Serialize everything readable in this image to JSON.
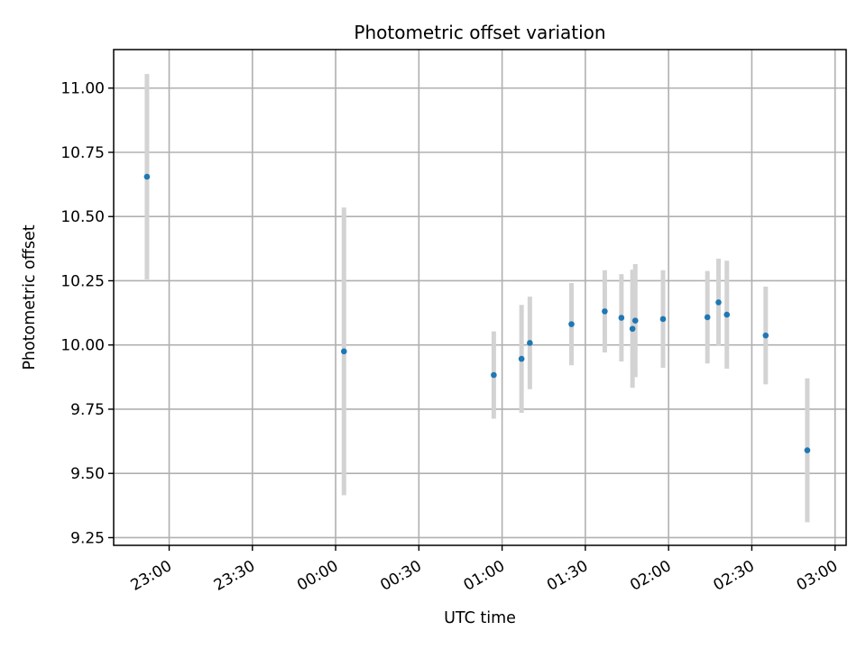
{
  "chart_data": {
    "type": "scatter",
    "title": "Photometric offset variation",
    "xlabel": "UTC time",
    "ylabel": "Photometric offset",
    "grid": true,
    "colors": {
      "points": "#1f77b4",
      "errorbars": "#d3d3d3",
      "grid": "#b0b0b0"
    },
    "xlim": [
      "22:40",
      "03:04"
    ],
    "ylim": [
      9.22,
      11.15
    ],
    "x_ticks": [
      "23:00",
      "23:30",
      "00:00",
      "00:30",
      "01:00",
      "01:30",
      "02:00",
      "02:30",
      "03:00"
    ],
    "y_ticks": [
      "9.25",
      "9.50",
      "9.75",
      "10.00",
      "10.25",
      "10.50",
      "10.75",
      "11.00"
    ],
    "points": [
      {
        "x": "22:52",
        "y": 10.655,
        "ylow": 10.255,
        "yhigh": 11.055
      },
      {
        "x": "00:03",
        "y": 9.975,
        "ylow": 9.415,
        "yhigh": 10.535
      },
      {
        "x": "00:57",
        "y": 9.883,
        "ylow": 9.713,
        "yhigh": 10.053
      },
      {
        "x": "01:07",
        "y": 9.946,
        "ylow": 9.736,
        "yhigh": 10.156
      },
      {
        "x": "01:10",
        "y": 10.008,
        "ylow": 9.828,
        "yhigh": 10.188
      },
      {
        "x": "01:25",
        "y": 10.081,
        "ylow": 9.921,
        "yhigh": 10.241
      },
      {
        "x": "01:37",
        "y": 10.131,
        "ylow": 9.971,
        "yhigh": 10.291
      },
      {
        "x": "01:43",
        "y": 10.106,
        "ylow": 9.936,
        "yhigh": 10.276
      },
      {
        "x": "01:47",
        "y": 10.063,
        "ylow": 9.833,
        "yhigh": 10.293
      },
      {
        "x": "01:48",
        "y": 10.095,
        "ylow": 9.875,
        "yhigh": 10.315
      },
      {
        "x": "01:58",
        "y": 10.101,
        "ylow": 9.911,
        "yhigh": 10.291
      },
      {
        "x": "02:14",
        "y": 10.108,
        "ylow": 9.928,
        "yhigh": 10.288
      },
      {
        "x": "02:18",
        "y": 10.166,
        "ylow": 9.996,
        "yhigh": 10.336
      },
      {
        "x": "02:21",
        "y": 10.118,
        "ylow": 9.908,
        "yhigh": 10.328
      },
      {
        "x": "02:35",
        "y": 10.037,
        "ylow": 9.847,
        "yhigh": 10.227
      },
      {
        "x": "02:50",
        "y": 9.59,
        "ylow": 9.31,
        "yhigh": 9.87
      }
    ]
  }
}
